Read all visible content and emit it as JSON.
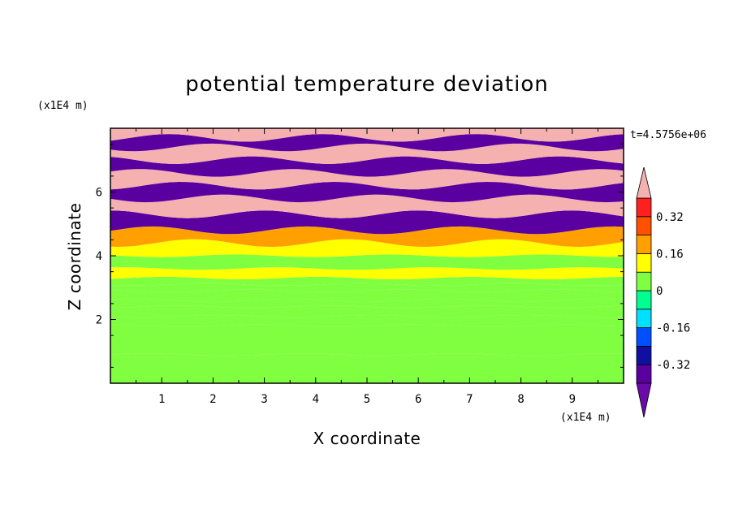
{
  "chart_data": {
    "type": "heatmap",
    "title": "potential temperature deviation",
    "xlabel": "X coordinate",
    "ylabel": "Z coordinate",
    "x_unit": "(x1E4 m)",
    "y_unit": "(x1E4 m)",
    "time_label": "t=4.5756e+06",
    "xlim": [
      0,
      10
    ],
    "ylim": [
      0,
      8
    ],
    "x_ticks": [
      1,
      2,
      3,
      4,
      5,
      6,
      7,
      8,
      9
    ],
    "y_ticks": [
      2,
      4,
      6
    ],
    "colorbar": {
      "levels": [
        -0.4,
        -0.32,
        -0.24,
        -0.16,
        -0.08,
        0,
        0.08,
        0.16,
        0.24,
        0.32,
        0.4
      ],
      "colors": [
        "#5a00a0",
        "#1010a0",
        "#0050ff",
        "#00e0ff",
        "#00ff90",
        "#80ff40",
        "#ffff00",
        "#ffa000",
        "#ff5000",
        "#ff2020",
        "#f8a8a8"
      ],
      "under_color": "#6a0aa8",
      "over_color": "#f5b0b0",
      "tick_labels": [
        {
          "value": 0.32,
          "label": "0.32"
        },
        {
          "value": 0.16,
          "label": "0.16"
        },
        {
          "value": 0,
          "label": "0"
        },
        {
          "value": -0.16,
          "label": "-0.16"
        },
        {
          "value": -0.32,
          "label": "-0.32"
        }
      ]
    },
    "bands": [
      {
        "z": [
          0.0,
          0.9
        ],
        "value": 0.05
      },
      {
        "z": [
          0.9,
          1.8
        ],
        "value": 0.02
      },
      {
        "z": [
          1.8,
          2.1
        ],
        "value": 0.0
      },
      {
        "z": [
          2.1,
          2.4
        ],
        "value": 0.05
      },
      {
        "z": [
          2.4,
          2.6
        ],
        "value": 0.0
      },
      {
        "z": [
          2.6,
          2.9
        ],
        "value": 0.06
      },
      {
        "z": [
          2.9,
          3.1
        ],
        "value": 0.0
      },
      {
        "z": [
          3.1,
          3.3
        ],
        "value": 0.06
      },
      {
        "z": [
          3.3,
          3.6
        ],
        "value": 0.1
      },
      {
        "z": [
          3.6,
          4.0
        ],
        "value": 0.05
      },
      {
        "z": [
          4.0,
          4.4
        ],
        "value": 0.1
      },
      {
        "z": [
          4.4,
          4.8
        ],
        "value": 0.22
      },
      {
        "z": [
          4.8,
          5.3
        ],
        "value": -0.38
      },
      {
        "z": [
          5.3,
          5.8
        ],
        "value": 0.4
      },
      {
        "z": [
          5.8,
          6.2
        ],
        "value": -0.38
      },
      {
        "z": [
          6.2,
          6.6
        ],
        "value": 0.4
      },
      {
        "z": [
          6.6,
          7.0
        ],
        "value": -0.38
      },
      {
        "z": [
          7.0,
          7.4
        ],
        "value": 0.4
      },
      {
        "z": [
          7.4,
          7.7
        ],
        "value": -0.38
      },
      {
        "z": [
          7.7,
          8.0
        ],
        "value": 0.4
      }
    ]
  }
}
